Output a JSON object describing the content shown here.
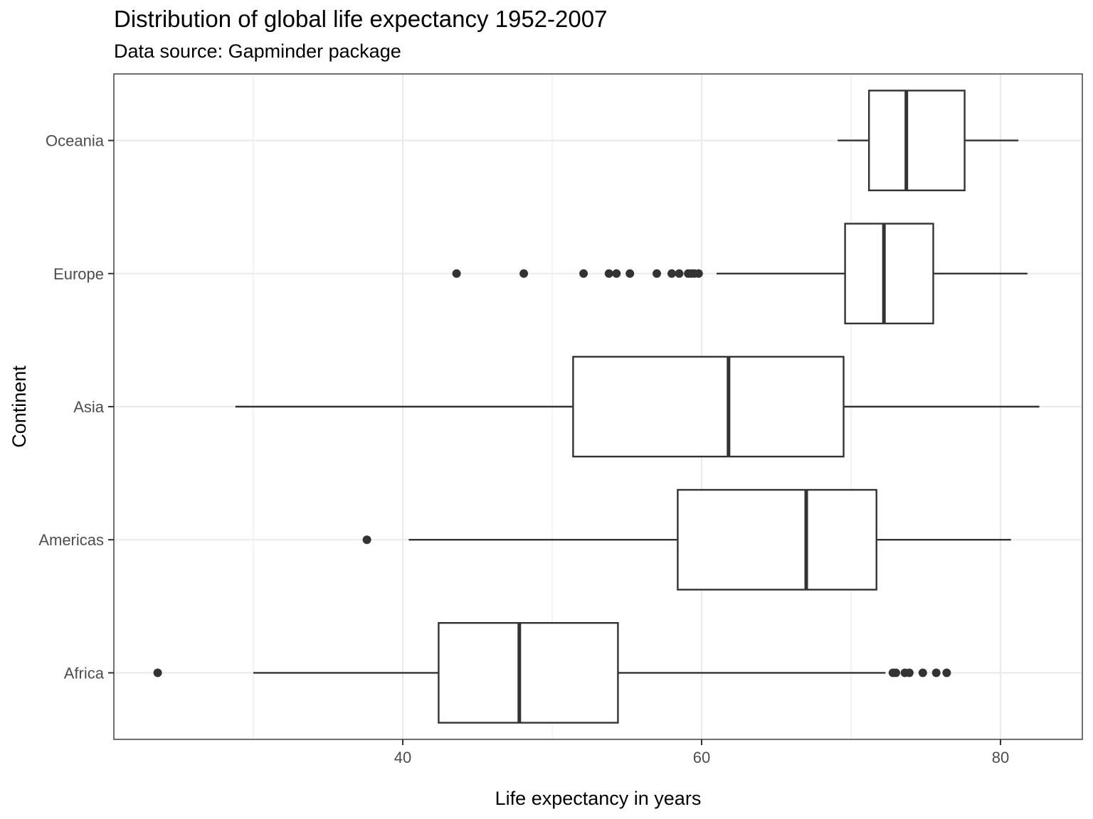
{
  "chart_data": {
    "type": "boxplot",
    "orientation": "horizontal",
    "title": "Distribution of global life expectancy 1952-2007",
    "subtitle": "Data source: Gapminder package",
    "xlabel": "Life expectancy in years",
    "ylabel": "Continent",
    "xlim": [
      23.6,
      85.9
    ],
    "xticks": [
      40,
      60,
      80
    ],
    "grid": true,
    "categories": [
      "Africa",
      "Americas",
      "Asia",
      "Europe",
      "Oceania"
    ],
    "boxes": [
      {
        "category": "Africa",
        "whisker_low": 30.0,
        "q1": 42.4,
        "median": 47.8,
        "q3": 54.4,
        "whisker_high": 72.3,
        "outliers": [
          23.6,
          72.8,
          73.0,
          73.6,
          73.9,
          74.8,
          75.7,
          76.4
        ]
      },
      {
        "category": "Americas",
        "whisker_low": 40.4,
        "q1": 58.4,
        "median": 67.0,
        "q3": 71.7,
        "whisker_high": 80.7,
        "outliers": [
          37.6
        ]
      },
      {
        "category": "Asia",
        "whisker_low": 28.8,
        "q1": 51.4,
        "median": 61.8,
        "q3": 69.5,
        "whisker_high": 82.6,
        "outliers": []
      },
      {
        "category": "Europe",
        "whisker_low": 61.0,
        "q1": 69.6,
        "median": 72.2,
        "q3": 75.5,
        "whisker_high": 81.8,
        "outliers": [
          43.6,
          48.1,
          52.1,
          53.8,
          54.3,
          55.2,
          57.0,
          58.0,
          58.5,
          59.1,
          59.3,
          59.5,
          59.8
        ]
      },
      {
        "category": "Oceania",
        "whisker_low": 69.1,
        "q1": 71.2,
        "median": 73.7,
        "q3": 77.6,
        "whisker_high": 81.2,
        "outliers": []
      }
    ]
  }
}
